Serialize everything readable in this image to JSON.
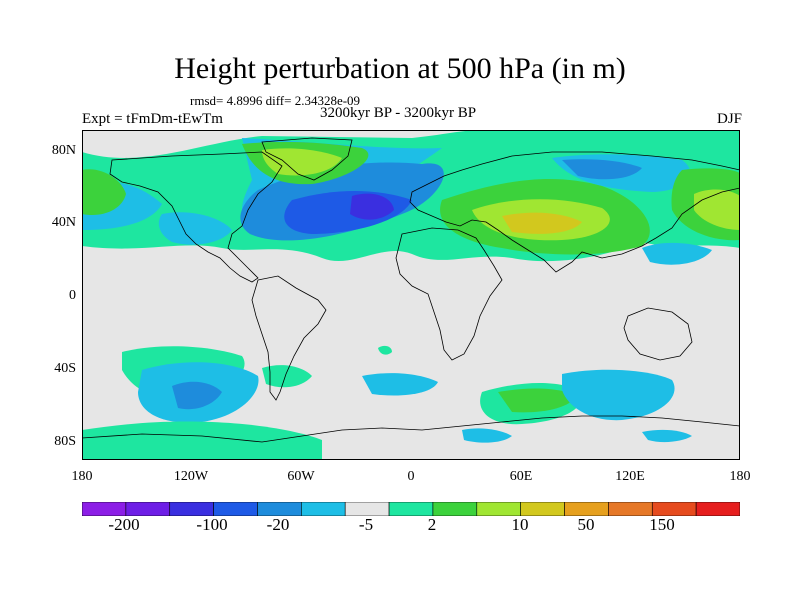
{
  "title": "Height perturbation at 500 hPa (in m)",
  "stats": "rmsd= 4.8996 diff= 2.34328e-09",
  "experiment": "Expt = tFmDm-tEwTm",
  "period": "3200kyr BP - 3200kyr BP",
  "season": "DJF",
  "map": {
    "projection": "cylindrical-equidistant",
    "lon_range": [
      -180,
      180
    ],
    "lat_range": [
      -90,
      90
    ],
    "lat_ticks": [
      "80N",
      "40N",
      "0",
      "40S",
      "80S"
    ],
    "lon_ticks": [
      "180",
      "120W",
      "60W",
      "0",
      "60E",
      "120E",
      "180"
    ]
  },
  "colorbar": {
    "labels": [
      "-200",
      "-100",
      "-20",
      "-5",
      "2",
      "10",
      "50",
      "150"
    ],
    "colors": [
      "#8c1ee6",
      "#6e1ee6",
      "#3a2fe0",
      "#1e5ae6",
      "#1e8cdc",
      "#1ebee6",
      "#e6e6e6",
      "#1ee6a0",
      "#3cd23c",
      "#a0e632",
      "#d2c81e",
      "#e6a01e",
      "#e67828",
      "#e64b1e",
      "#e61e1e"
    ]
  },
  "icons": [
    "coastline-outline"
  ]
}
